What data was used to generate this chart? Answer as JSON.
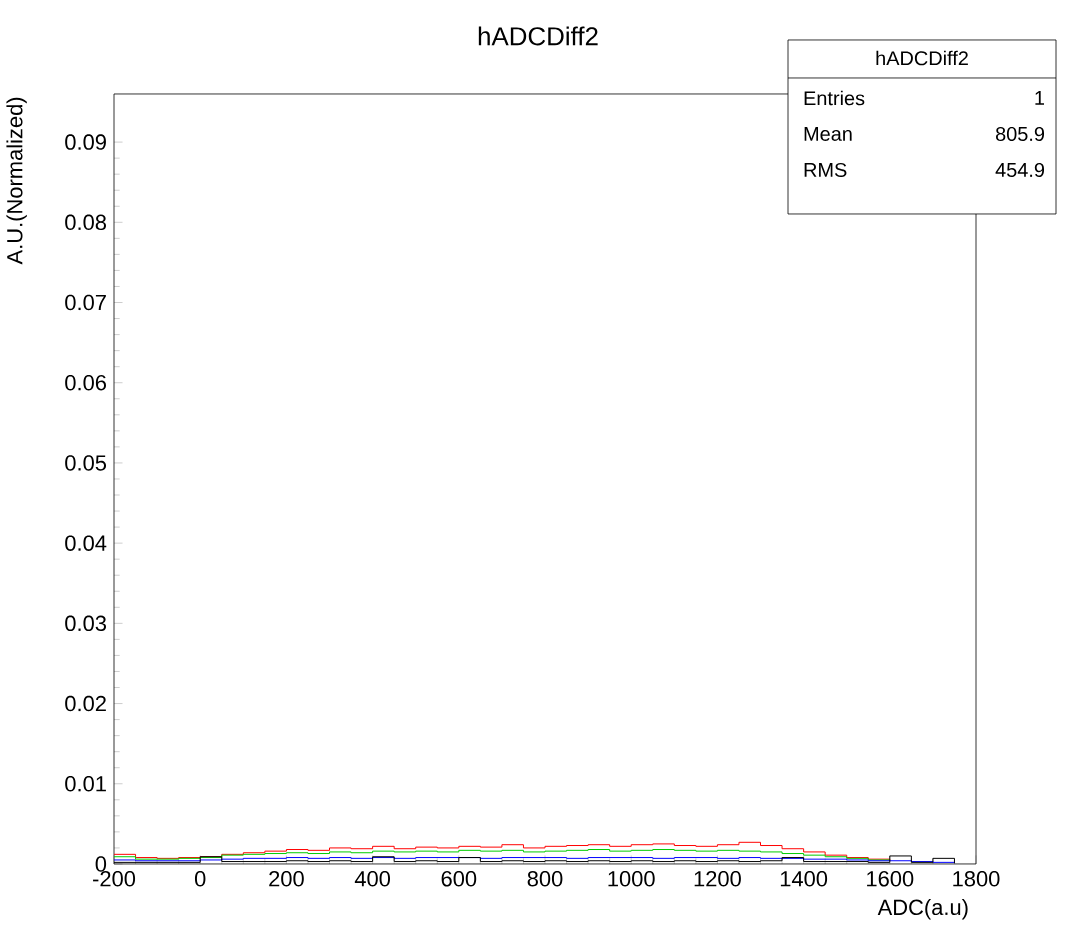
{
  "chart_data": {
    "type": "step",
    "title": "hADCDiff2",
    "xlabel": "ADC(a.u)",
    "ylabel": "A.U.(Normalized)",
    "x": [
      -200,
      -150,
      -100,
      -50,
      0,
      50,
      100,
      150,
      200,
      250,
      300,
      350,
      400,
      450,
      500,
      550,
      600,
      650,
      700,
      750,
      800,
      850,
      900,
      950,
      1000,
      1050,
      1100,
      1150,
      1200,
      1250,
      1300,
      1350,
      1400,
      1450,
      1500,
      1550,
      1600,
      1650,
      1700,
      1750
    ],
    "series": [
      {
        "color": "#ff0000",
        "values": [
          0.0012,
          0.0008,
          0.0007,
          0.0008,
          0.0009,
          0.0012,
          0.0014,
          0.0016,
          0.0018,
          0.0017,
          0.002,
          0.0019,
          0.0022,
          0.0019,
          0.0021,
          0.002,
          0.0022,
          0.0021,
          0.0024,
          0.002,
          0.0022,
          0.0023,
          0.0024,
          0.0022,
          0.0024,
          0.0025,
          0.0023,
          0.0022,
          0.0024,
          0.0027,
          0.0023,
          0.0019,
          0.0015,
          0.0011,
          0.0008,
          0.0006,
          0.0004,
          null,
          null,
          null
        ]
      },
      {
        "color": "#00cc00",
        "values": [
          0.0009,
          0.0006,
          0.0006,
          0.0007,
          0.0008,
          0.0011,
          0.0012,
          0.0013,
          0.0014,
          0.0013,
          0.0015,
          0.0014,
          0.0016,
          0.0015,
          0.0016,
          0.0015,
          0.0017,
          0.0016,
          0.0017,
          0.0015,
          0.0016,
          0.0017,
          0.0018,
          0.0016,
          0.0017,
          0.0018,
          0.0017,
          0.0016,
          0.0017,
          0.0016,
          0.0015,
          0.0013,
          0.0011,
          0.0009,
          0.0007,
          0.0005,
          0.0004,
          null,
          null,
          null
        ]
      },
      {
        "color": "#0000ff",
        "values": [
          0.0005,
          0.0004,
          0.0004,
          0.0004,
          0.0005,
          0.0006,
          0.0007,
          0.0007,
          0.0008,
          0.0007,
          0.0008,
          0.0007,
          0.0008,
          0.0007,
          0.0008,
          0.0008,
          0.0008,
          0.0007,
          0.0008,
          0.0008,
          0.0008,
          0.0007,
          0.0008,
          0.0008,
          0.0008,
          0.0007,
          0.0008,
          0.0008,
          0.0007,
          0.0008,
          0.0007,
          0.0007,
          0.0006,
          0.0006,
          0.0005,
          0.0004,
          0.0004,
          0.0003,
          0.0002,
          0.0001
        ]
      },
      {
        "color": "#000000",
        "values": [
          0.0002,
          0.0002,
          0.0002,
          0.0002,
          0.0009,
          0.0003,
          0.0003,
          0.0003,
          0.0004,
          0.0003,
          0.0004,
          0.0003,
          0.0009,
          0.0003,
          0.0004,
          0.0003,
          0.0008,
          0.0003,
          0.0004,
          0.0003,
          0.0004,
          0.0003,
          0.0004,
          0.0003,
          0.0004,
          0.0003,
          0.0004,
          0.0003,
          0.0004,
          0.0003,
          0.0004,
          0.0008,
          0.0003,
          0.0003,
          0.0003,
          0.0002,
          0.001,
          0.0002,
          0.0007,
          0.0001
        ]
      }
    ],
    "xlim": [
      -200,
      1800
    ],
    "ylim": [
      0,
      0.096
    ],
    "xticks": [
      -200,
      0,
      200,
      400,
      600,
      800,
      1000,
      1200,
      1400,
      1600,
      1800
    ],
    "yticks": [
      0,
      0.01,
      0.02,
      0.03,
      0.04,
      0.05,
      0.06,
      0.07,
      0.08,
      0.09
    ],
    "annotations": [
      "hADCDiff2",
      "Entries",
      "1",
      "Mean",
      "805.9",
      "RMS",
      "454.9"
    ]
  }
}
